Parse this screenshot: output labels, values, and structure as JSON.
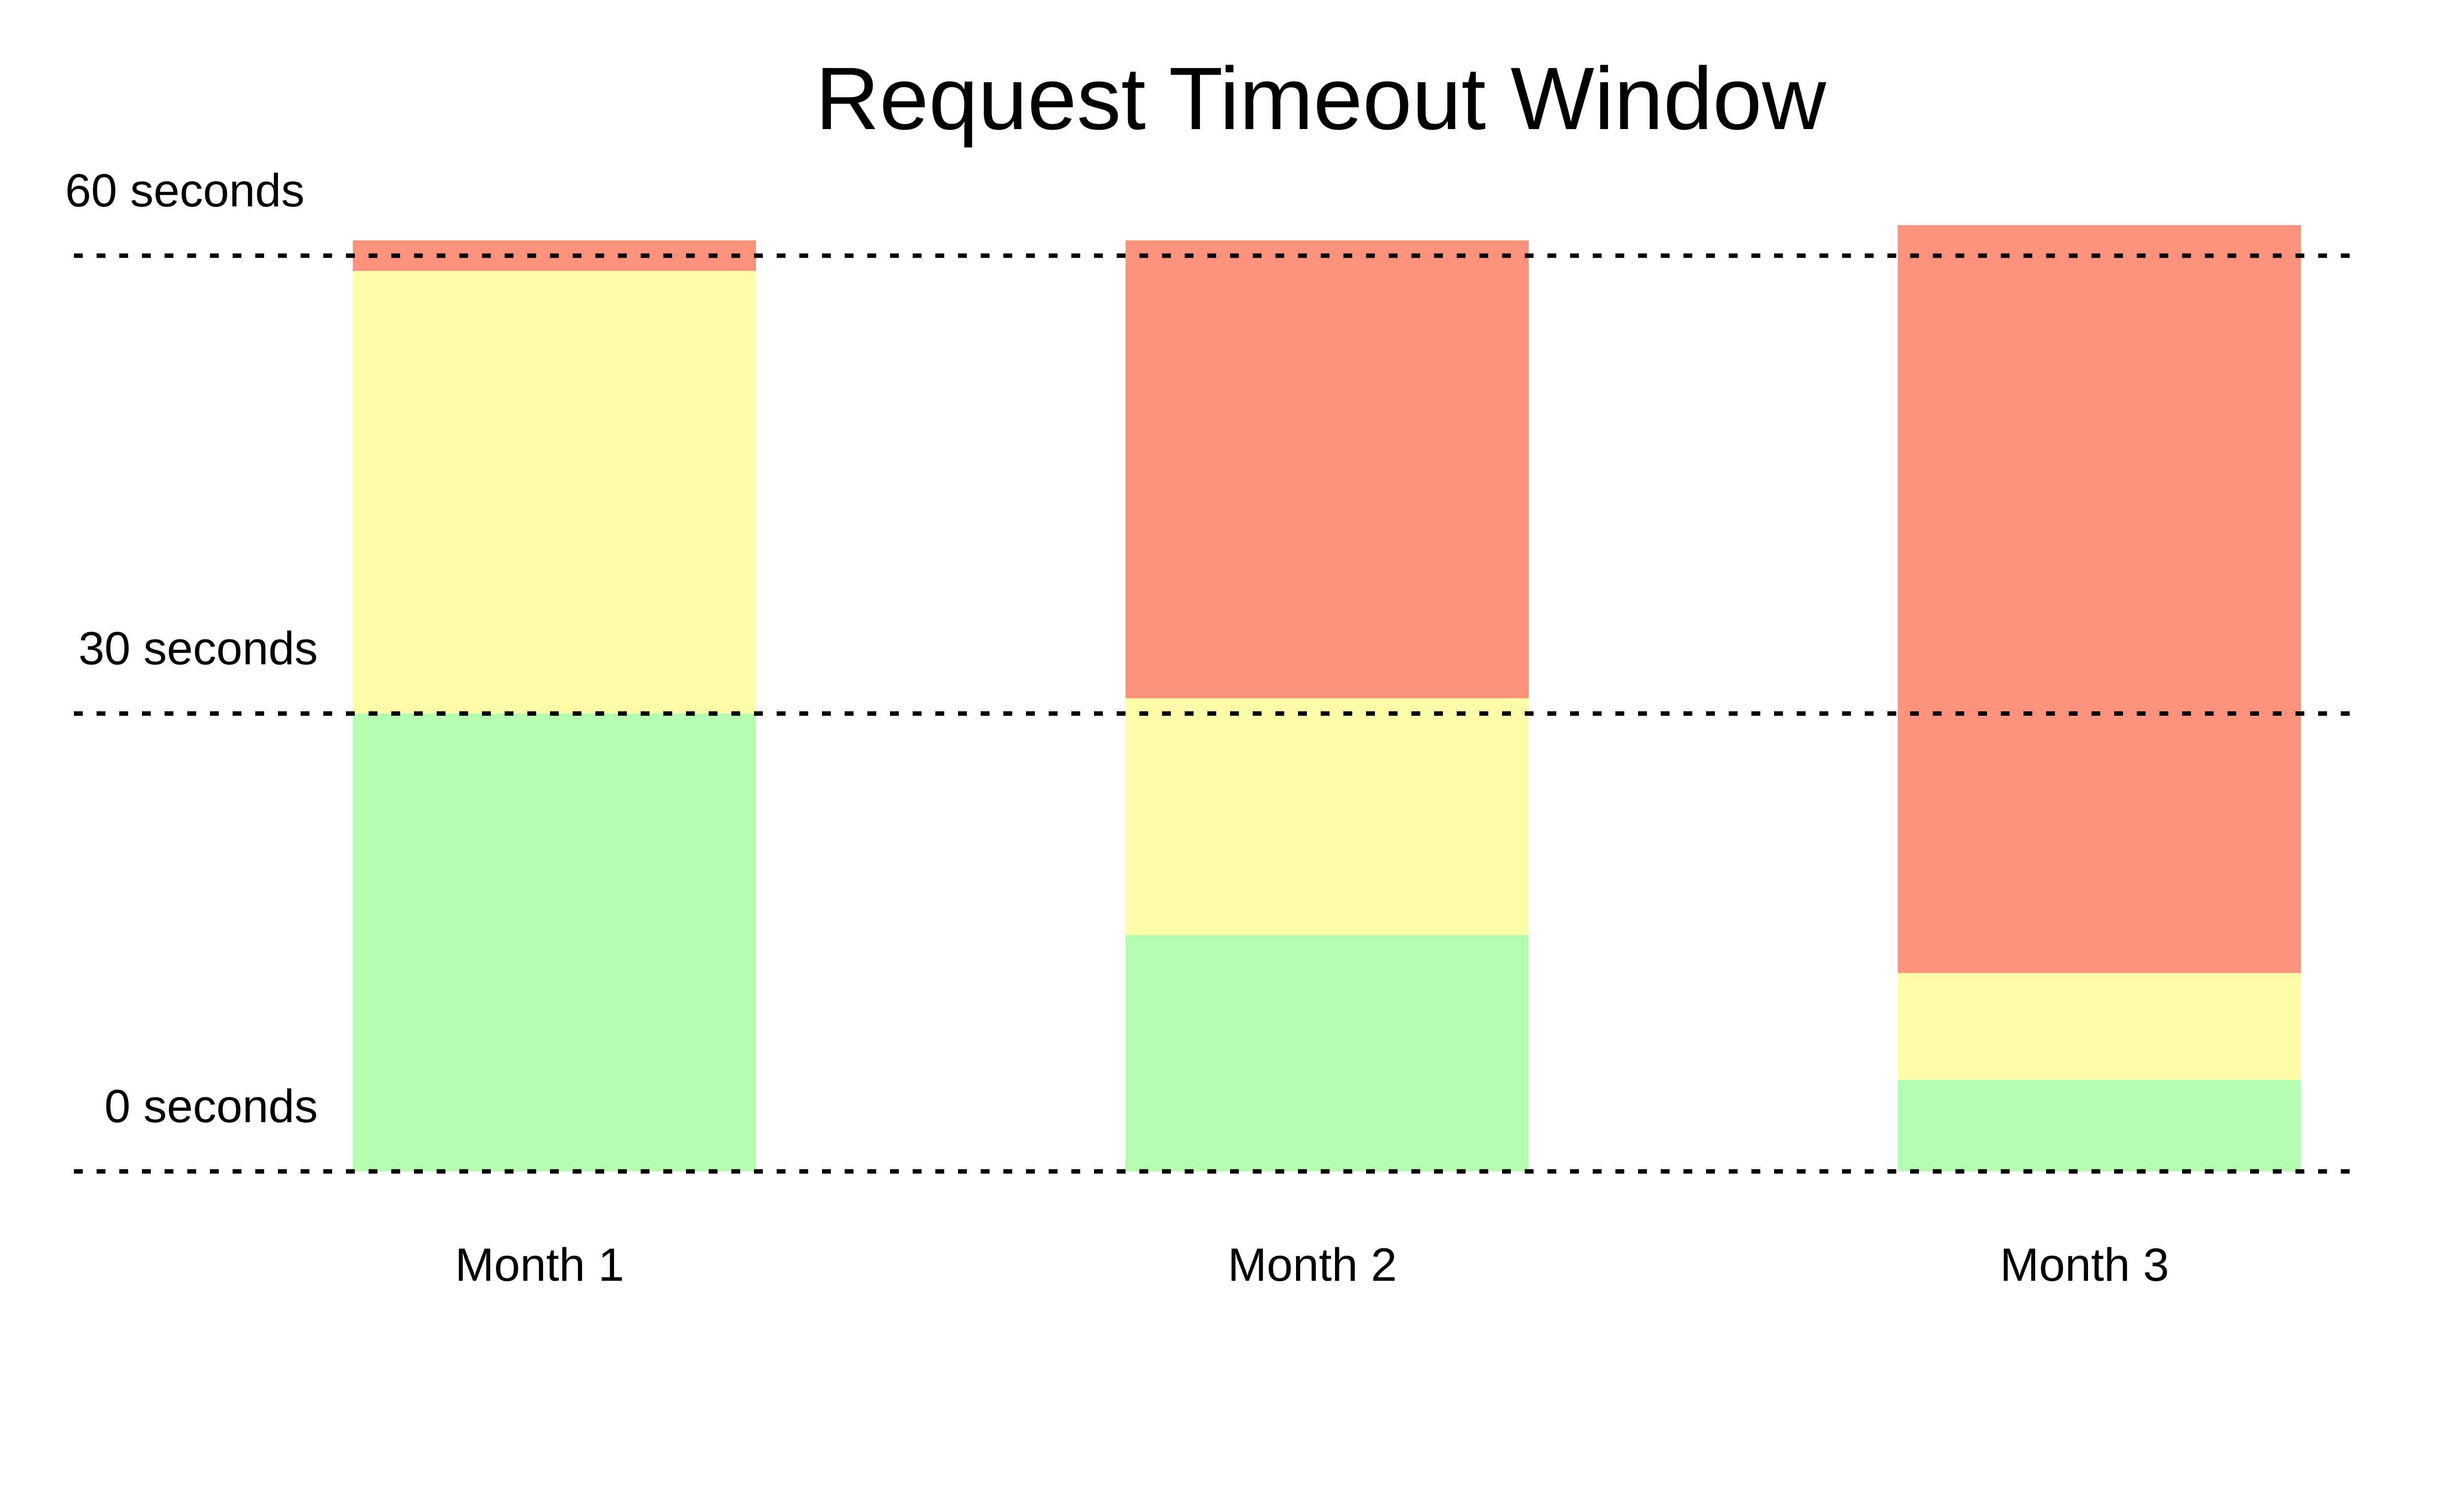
{
  "chart_data": {
    "type": "bar",
    "stacked": true,
    "title": "Request Timeout Window",
    "categories": [
      "Month 1",
      "Month 2",
      "Month 3"
    ],
    "series": [
      {
        "color": "#b3fcb0",
        "values": [
          30,
          15.5,
          6
        ]
      },
      {
        "color": "#fefda8",
        "values": [
          29,
          15.5,
          7
        ]
      },
      {
        "color": "#fe917c",
        "values": [
          2,
          30,
          49
        ]
      }
    ],
    "y_ticks": [
      {
        "value": 0,
        "label": "0 seconds"
      },
      {
        "value": 30,
        "label": "30 seconds"
      },
      {
        "value": 60,
        "label": "60 seconds"
      }
    ],
    "ylim": [
      0,
      62
    ],
    "grid": "dotted lines at tick values"
  }
}
